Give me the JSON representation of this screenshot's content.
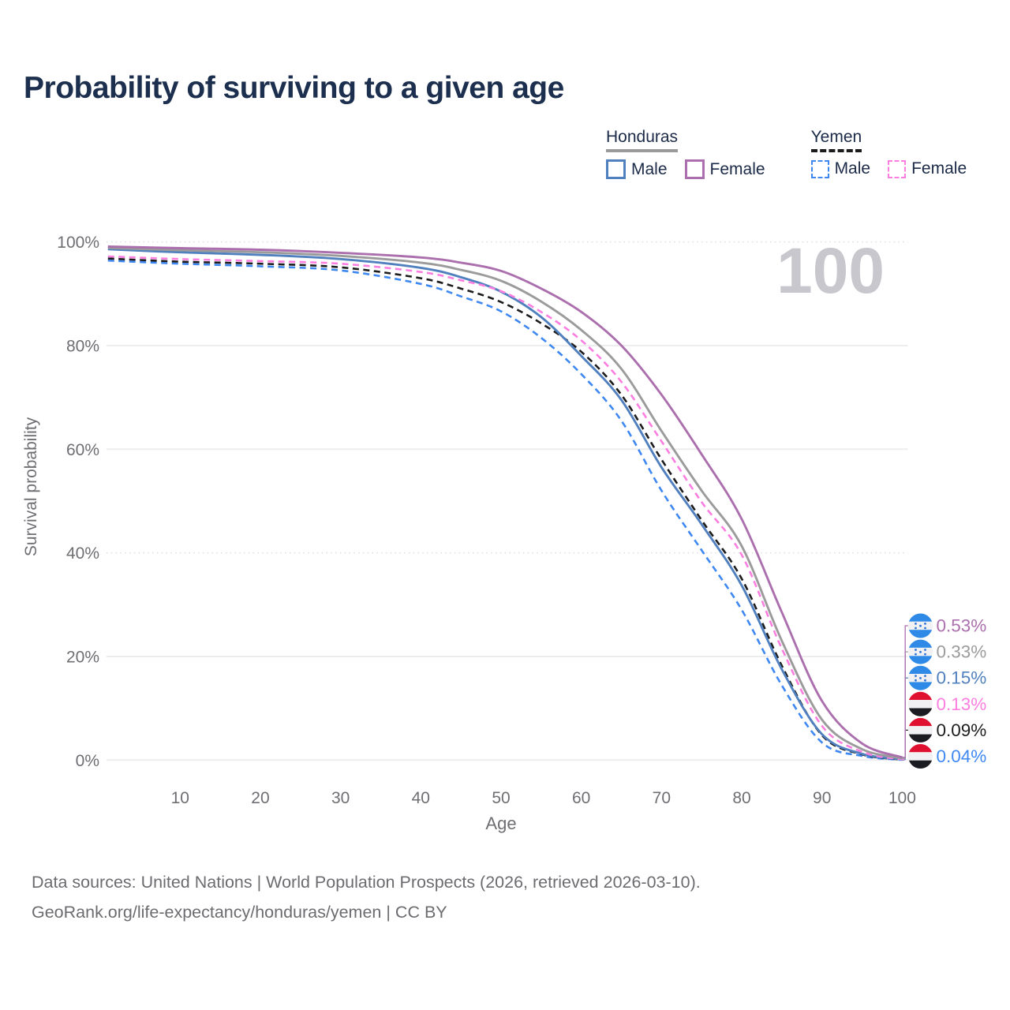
{
  "title": "Probability of surviving to a given age",
  "legend": {
    "groups": [
      {
        "label": "Honduras",
        "underline_color": "#9a9a9a",
        "line_style": "solid",
        "items": [
          {
            "label": "Male",
            "color": "#5180bf"
          },
          {
            "label": "Female",
            "color": "#ab6fae"
          }
        ]
      },
      {
        "label": "Yemen",
        "underline_color": "#1a1a1a",
        "line_style": "dashed",
        "items": [
          {
            "label": "Male",
            "color": "#3f88f2"
          },
          {
            "label": "Female",
            "color": "#fb7ee0"
          }
        ]
      }
    ]
  },
  "footer": {
    "line1": "Data sources: United Nations | World Population Prospects (2026, retrieved 2026-03-10).",
    "line2": "GeoRank.org/life-expectancy/honduras/yemen | CC BY"
  },
  "chart_data": {
    "type": "line",
    "title": "Probability of surviving to a given age",
    "xlabel": "Age",
    "ylabel": "Survival probability",
    "xlim": [
      0,
      100
    ],
    "ylim": [
      0,
      100
    ],
    "grid": "horizontal",
    "x_ticks": [
      10,
      20,
      30,
      40,
      50,
      60,
      70,
      80,
      90,
      100
    ],
    "y_ticks": [
      {
        "value": 0,
        "label": "0%"
      },
      {
        "value": 20,
        "label": "20%"
      },
      {
        "value": 40,
        "label": "40%"
      },
      {
        "value": 60,
        "label": "60%"
      },
      {
        "value": 80,
        "label": "80%"
      },
      {
        "value": 100,
        "label": "100%"
      }
    ],
    "dotted_gridlines": [
      100,
      40
    ],
    "hover_watermark": "100",
    "ages": [
      1,
      10,
      20,
      30,
      40,
      45,
      50,
      55,
      60,
      65,
      70,
      75,
      80,
      85,
      90,
      95,
      100
    ],
    "series": [
      {
        "name": "Yemen Male",
        "country": "Yemen",
        "sex": "Male",
        "color": "#3f88f2",
        "label_color": "#3f88f2",
        "dashed": true,
        "flag": "yemen",
        "values": [
          96.4,
          95.8,
          95.3,
          94.5,
          91.9,
          89.5,
          86.6,
          81.5,
          74.5,
          65.5,
          52.0,
          40.5,
          29.0,
          14.4,
          3.4,
          0.8,
          0.04
        ],
        "end_label": "0.04%",
        "endpoint_row": 5
      },
      {
        "name": "Yemen (both sexes)",
        "country": "Yemen",
        "sex": "Both",
        "color": "#1c1c1c",
        "label_color": "#1c1c1c",
        "dashed": true,
        "flag": "yemen",
        "values": [
          96.8,
          96.2,
          95.8,
          95.1,
          93.0,
          91.0,
          88.4,
          84.3,
          78.8,
          70.5,
          58.0,
          46.3,
          35.0,
          18.2,
          4.8,
          1.1,
          0.09
        ],
        "end_label": "0.09%",
        "endpoint_row": 4
      },
      {
        "name": "Honduras Male",
        "country": "Honduras",
        "sex": "Male",
        "color": "#5180bf",
        "label_color": "#5180bf",
        "dashed": false,
        "flag": "honduras",
        "values": [
          98.6,
          98.0,
          97.5,
          96.7,
          95.0,
          93.2,
          90.4,
          85.5,
          78.0,
          69.5,
          56.5,
          45.5,
          33.7,
          17.5,
          5.0,
          1.2,
          0.15
        ],
        "end_label": "0.15%",
        "endpoint_row": 2
      },
      {
        "name": "Yemen Female",
        "country": "Yemen",
        "sex": "Female",
        "color": "#fb7ee0",
        "label_color": "#fb7ee0",
        "dashed": true,
        "flag": "yemen",
        "values": [
          97.2,
          96.7,
          96.3,
          95.8,
          94.2,
          92.6,
          90.5,
          86.5,
          81.0,
          73.0,
          61.5,
          49.8,
          39.6,
          21.5,
          6.6,
          1.6,
          0.13
        ],
        "end_label": "0.13%",
        "endpoint_row": 3
      },
      {
        "name": "Honduras (both sexes)",
        "country": "Honduras",
        "sex": "Both",
        "color": "#9b9b9b",
        "label_color": "#9b9b9b",
        "dashed": false,
        "flag": "honduras",
        "values": [
          98.85,
          98.4,
          98.0,
          97.3,
          96.0,
          94.6,
          92.5,
          88.5,
          83.0,
          75.5,
          63.5,
          52.0,
          41.3,
          23.0,
          7.8,
          2.1,
          0.33
        ],
        "end_label": "0.33%",
        "endpoint_row": 1
      },
      {
        "name": "Honduras Female",
        "country": "Honduras",
        "sex": "Female",
        "color": "#ab6fae",
        "label_color": "#ab6fae",
        "dashed": false,
        "flag": "honduras",
        "values": [
          99.1,
          98.8,
          98.5,
          97.9,
          97.0,
          96.0,
          94.4,
          91.0,
          86.5,
          80.0,
          70.5,
          59.0,
          46.5,
          28.5,
          11.4,
          3.2,
          0.53
        ],
        "end_label": "0.53%",
        "endpoint_row": 0
      }
    ]
  }
}
